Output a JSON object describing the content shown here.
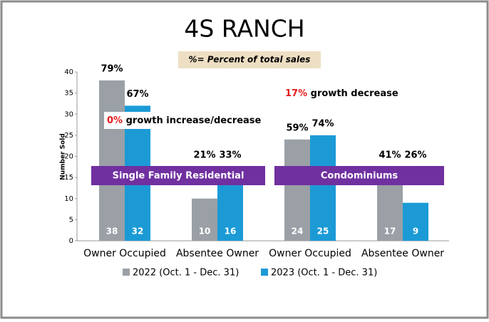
{
  "chart_data": {
    "type": "bar",
    "title": "4S RANCH",
    "note": "%= Percent of total sales",
    "ylabel": "Number Sold",
    "categories": [
      "Owner Occupied",
      "Absentee Owner",
      "Owner Occupied",
      "Absentee Owner"
    ],
    "series": [
      {
        "name": "2022 (Oct. 1 - Dec. 31)",
        "color": "#9aa0a6",
        "values": [
          38,
          10,
          24,
          17
        ],
        "percent_labels": [
          "79%",
          "21%",
          "59%",
          "41%"
        ]
      },
      {
        "name": "2023 (Oct. 1 - Dec. 31)",
        "color": "#1b9ad6",
        "values": [
          32,
          16,
          25,
          9
        ],
        "percent_labels": [
          "67%",
          "33%",
          "74%",
          "26%"
        ]
      }
    ],
    "groups": [
      "Single Family Residential",
      "Condominiums"
    ],
    "annotations": [
      {
        "highlight": "0%",
        "text": "growth increase/decrease"
      },
      {
        "highlight": "17%",
        "text": "growth decrease"
      }
    ],
    "ylim": [
      0,
      40
    ],
    "yticks": [
      0,
      5,
      10,
      15,
      20,
      25,
      30,
      35,
      40
    ],
    "grid": false,
    "legend": "bottom"
  }
}
